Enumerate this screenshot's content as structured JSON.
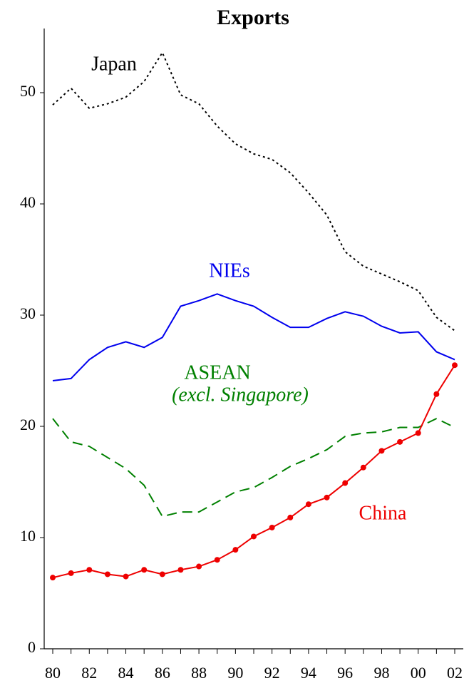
{
  "chart_data": {
    "type": "line",
    "title": "Exports",
    "categories": [
      "80",
      null,
      "82",
      null,
      "84",
      null,
      "86",
      null,
      "88",
      null,
      "90",
      null,
      "92",
      null,
      "94",
      null,
      "96",
      null,
      "98",
      null,
      "00",
      null,
      "02"
    ],
    "ylim": [
      0,
      56
    ],
    "yticks": [
      0,
      10,
      20,
      30,
      40,
      50
    ],
    "grid": false,
    "annotation": "(excl. Singapore)",
    "series": [
      {
        "name": "Japan",
        "color": "#000000",
        "style": "dotted",
        "marker": false,
        "values": [
          48.9,
          50.4,
          48.6,
          49.0,
          49.6,
          51.0,
          53.6,
          49.8,
          49.0,
          47.0,
          45.4,
          44.5,
          44.0,
          42.8,
          41.0,
          39.0,
          35.7,
          34.4,
          33.7,
          33.0,
          32.2,
          29.8,
          28.6
        ]
      },
      {
        "name": "NIEs",
        "color": "#0000ee",
        "style": "solid",
        "marker": false,
        "values": [
          24.1,
          24.3,
          26.0,
          27.1,
          27.6,
          27.1,
          28.0,
          30.8,
          31.3,
          31.9,
          31.3,
          30.8,
          29.8,
          28.9,
          28.9,
          29.7,
          30.3,
          29.9,
          29.0,
          28.4,
          28.5,
          26.7,
          26.0
        ]
      },
      {
        "name": "ASEAN",
        "color": "#008000",
        "style": "dashed",
        "marker": false,
        "values": [
          20.7,
          18.6,
          18.2,
          17.2,
          16.2,
          14.7,
          11.9,
          12.3,
          12.3,
          13.2,
          14.1,
          14.5,
          15.4,
          16.4,
          17.1,
          17.9,
          19.1,
          19.4,
          19.5,
          19.9,
          19.9,
          20.7,
          19.9
        ]
      },
      {
        "name": "China",
        "color": "#ee0000",
        "style": "solid",
        "marker": true,
        "values": [
          6.4,
          6.8,
          7.1,
          6.7,
          6.5,
          7.1,
          6.7,
          7.1,
          7.4,
          8.0,
          8.9,
          10.1,
          10.9,
          11.8,
          13.0,
          13.6,
          14.9,
          16.3,
          17.8,
          18.6,
          19.4,
          22.9,
          25.5
        ]
      }
    ]
  }
}
